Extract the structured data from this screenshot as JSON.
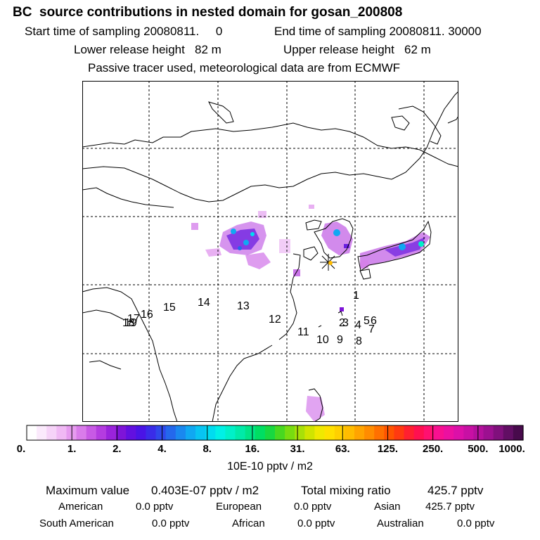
{
  "header": {
    "title": "BC  source contributions in nested domain for gosan_200808",
    "start_label": "Start time of sampling 20080811.     0",
    "end_label": "End time of sampling 20080811. 30000",
    "lower_label": "Lower release height   82 m",
    "upper_label": "Upper release height   62 m",
    "note": "Passive tracer used, meteorological data are from ECMWF"
  },
  "map": {
    "labels": [
      "1",
      "2",
      "3",
      "4",
      "5",
      "6",
      "7",
      "8",
      "9",
      "10",
      "11",
      "12",
      "13",
      "14",
      "15",
      "16",
      "17",
      "18",
      "19"
    ],
    "receptor": "gosan",
    "colors": {
      "coast": "#000000",
      "grid": "#000000",
      "receptor": "#000000"
    }
  },
  "colorbar": {
    "ticks": [
      "0.",
      "1.",
      "2.",
      "4.",
      "8.",
      "16.",
      "31.",
      "63.",
      "125.",
      "250.",
      "500.",
      "1000."
    ],
    "colors": [
      "#ffffff",
      "#fbeafc",
      "#f6d3f8",
      "#f0b9f4",
      "#e69bef",
      "#d97cea",
      "#c85ae5",
      "#b43ce0",
      "#9a23dc",
      "#7e14d8",
      "#6210e0",
      "#4a14e6",
      "#3a2ce8",
      "#2f48ea",
      "#2468ec",
      "#1a88ef",
      "#10a8f2",
      "#08c4f2",
      "#00dcf0",
      "#00f0e6",
      "#00f0c8",
      "#00eaa8",
      "#00e486",
      "#00de62",
      "#18d840",
      "#48d820",
      "#78dc10",
      "#a8e008",
      "#d0e400",
      "#f0e800",
      "#ffe000",
      "#ffd000",
      "#ffbc00",
      "#ffa400",
      "#ff8c00",
      "#ff7000",
      "#ff5400",
      "#ff3a10",
      "#ff2030",
      "#ff1050",
      "#ff1070",
      "#f81090",
      "#ec10a0",
      "#dc10a8",
      "#c810a4",
      "#b4109c",
      "#9c1090",
      "#80107c",
      "#620e64",
      "#480a4c"
    ],
    "unit": "10E-10 pptv / m2"
  },
  "summary": {
    "max_label": "Maximum value",
    "max_value": "0.403E-07 pptv / m2",
    "total_label": "Total mixing ratio",
    "total_value": "425.7 pptv",
    "american_label": "American",
    "american_value": "0.0 pptv",
    "european_label": "European",
    "european_value": "0.0 pptv",
    "asian_label": "Asian",
    "asian_value": "425.7 pptv",
    "south_american_label": "South American",
    "south_american_value": "0.0 pptv",
    "african_label": "African",
    "african_value": "0.0 pptv",
    "australian_label": "Australian",
    "australian_value": "0.0 pptv"
  }
}
